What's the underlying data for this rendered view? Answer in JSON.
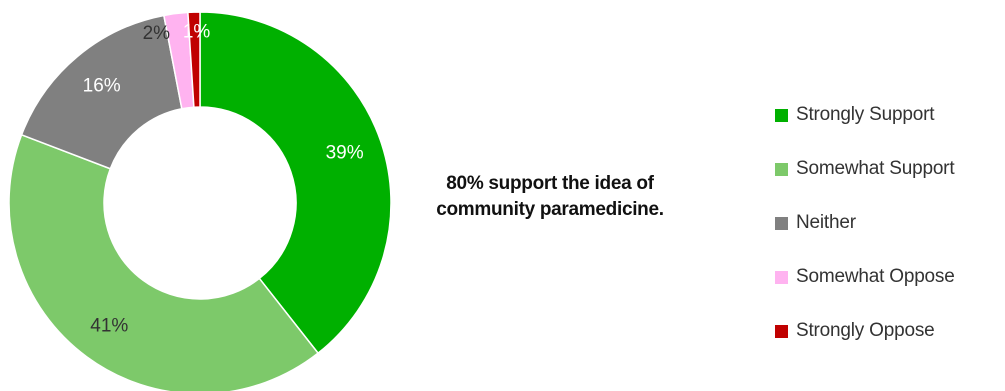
{
  "chart_data": {
    "type": "pie",
    "title": "",
    "categories": [
      "Strongly Support",
      "Somewhat Support",
      "Neither",
      "Somewhat Oppose",
      "Strongly Oppose"
    ],
    "values": [
      39,
      41,
      16,
      2,
      1
    ],
    "labels": [
      "39%",
      "41%",
      "16%",
      "2%",
      "1%"
    ],
    "colors": [
      "#00B000",
      "#7DC96A",
      "#808080",
      "#FFB3F0",
      "#C00000"
    ],
    "label_colors": [
      "#ffffff",
      "#333333",
      "#ffffff",
      "#333333",
      "#ffffff"
    ],
    "donut": true,
    "legend_position": "right",
    "annotation": {
      "lines": [
        "80% support the idea of",
        "community paramedicine."
      ]
    }
  }
}
